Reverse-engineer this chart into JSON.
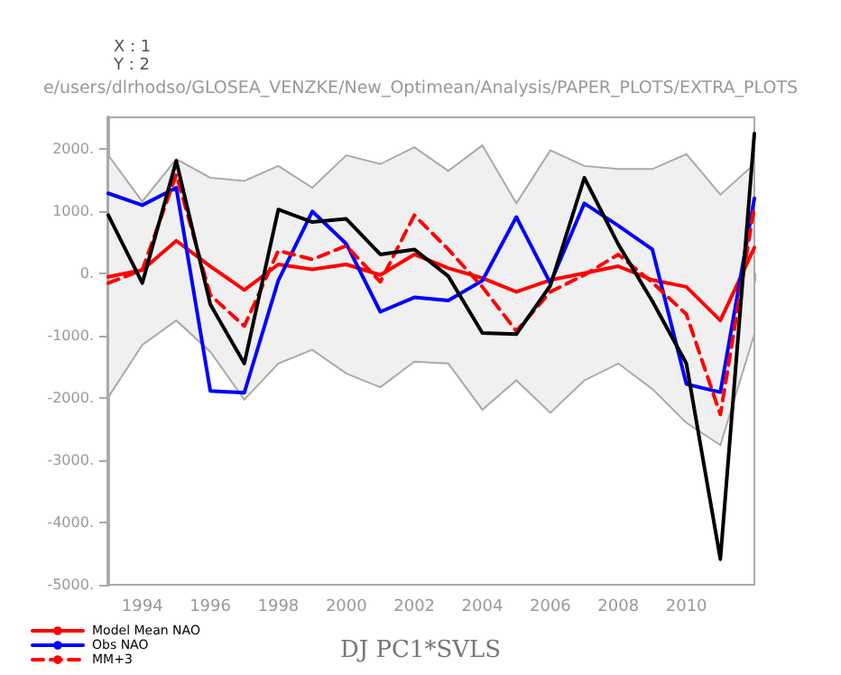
{
  "chart_data": {
    "type": "line",
    "title": "DJ PC1*SVLS",
    "annotations": [
      "X : 1",
      "Y : 2",
      "e/users/dlrhodso/GLOSEA_VENZKE/New_Optimean/Analysis/PAPER_PLOTS/EXTRA_PLOTS"
    ],
    "x": [
      1993,
      1994,
      1995,
      1996,
      1997,
      1998,
      1999,
      2000,
      2001,
      2002,
      2003,
      2004,
      2005,
      2006,
      2007,
      2008,
      2009,
      2010,
      2011,
      2012
    ],
    "series": [
      {
        "name": "Model Mean NAO",
        "color": "#ff0000",
        "line_style": "solid",
        "values": [
          -60,
          50,
          520,
          110,
          -270,
          140,
          60,
          140,
          -30,
          300,
          80,
          -80,
          -300,
          -110,
          0,
          110,
          -110,
          -220,
          -760,
          410
        ],
        "lower": [
          -1990,
          -1150,
          -760,
          -1260,
          -2030,
          -1450,
          -1230,
          -1610,
          -1830,
          -1420,
          -1450,
          -2190,
          -1720,
          -2240,
          -1720,
          -1450,
          -1860,
          -2400,
          -2760,
          -980
        ],
        "upper": [
          1890,
          1150,
          1830,
          1530,
          1480,
          1720,
          1370,
          1890,
          1750,
          2020,
          1640,
          2050,
          1120,
          1970,
          1720,
          1670,
          1670,
          1910,
          1260,
          1750
        ]
      },
      {
        "name": "Obs NAO",
        "color": "#0000ff",
        "line_style": "solid",
        "values": [
          1280,
          1090,
          1370,
          -1890,
          -1920,
          -120,
          990,
          470,
          -620,
          -390,
          -440,
          -120,
          900,
          -160,
          1120,
          760,
          380,
          -1780,
          -1910,
          1200
        ]
      },
      {
        "name": "MM+3",
        "color": "#ff0000",
        "line_style": "dashed",
        "values": [
          -160,
          50,
          1580,
          -350,
          -850,
          360,
          220,
          440,
          -140,
          930,
          380,
          -220,
          -930,
          -300,
          -30,
          300,
          -150,
          -660,
          -2270,
          1070
        ]
      },
      {
        "color": "#000000",
        "line_style": "solid",
        "values": [
          930,
          -160,
          1800,
          -500,
          -1450,
          1020,
          820,
          870,
          300,
          380,
          -50,
          -960,
          -980,
          -200,
          1530,
          460,
          -450,
          -1450,
          -4590,
          2240
        ]
      }
    ],
    "xlim": [
      1993,
      2012
    ],
    "xticks": [
      1994,
      1996,
      1998,
      2000,
      2002,
      2004,
      2006,
      2008,
      2010,
      {
        "value": 2012,
        "label": null
      }
    ],
    "ylim": [
      -5000,
      2500
    ],
    "yticks": [
      {
        "value": -5000,
        "label": "-5000."
      },
      {
        "value": -4000,
        "label": "-4000."
      },
      {
        "value": -3000,
        "label": "-3000."
      },
      {
        "value": -2000,
        "label": "-2000."
      },
      {
        "value": -1000,
        "label": "-1000."
      },
      {
        "value": 0,
        "label": "0."
      },
      {
        "value": 1000,
        "label": "1000."
      },
      {
        "value": 2000,
        "label": "2000."
      }
    ],
    "grid": false,
    "legend": "bottom left",
    "marker": "none"
  }
}
